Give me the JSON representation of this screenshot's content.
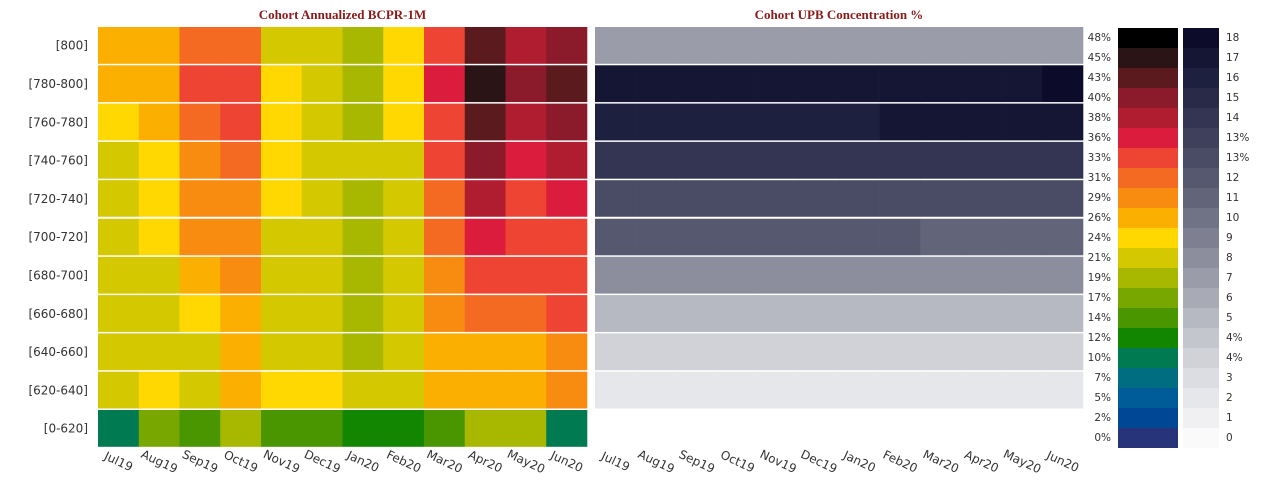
{
  "chart_data": [
    {
      "type": "heatmap",
      "title": "Cohort Annualized BCPR-1M",
      "x": [
        "Jul19",
        "Aug19",
        "Sep19",
        "Oct19",
        "Nov19",
        "Dec19",
        "Jan20",
        "Feb20",
        "Mar20",
        "Apr20",
        "May20",
        "Jun20"
      ],
      "y": [
        "[800]",
        "[780-800]",
        "[760-780]",
        "[740-760]",
        "[720-740]",
        "[700-720]",
        "[680-700]",
        "[660-680]",
        "[640-660]",
        "[620-640]",
        "[0-620]"
      ],
      "values": [
        [
          25,
          26,
          31,
          31,
          22,
          22,
          19,
          24,
          33,
          42,
          38,
          39
        ],
        [
          26,
          26,
          33,
          34,
          24,
          22,
          19,
          24,
          36,
          45,
          40,
          42
        ],
        [
          24,
          26,
          31,
          32,
          24,
          22,
          19,
          23,
          34,
          42,
          38,
          39
        ],
        [
          22,
          24,
          29,
          31,
          23,
          21,
          20,
          22,
          32,
          40,
          36,
          37
        ],
        [
          21,
          23,
          28,
          29,
          23,
          22,
          19,
          21,
          31,
          37,
          34,
          36
        ],
        [
          22,
          23,
          28,
          29,
          22,
          22,
          19,
          21,
          30,
          35,
          33,
          34
        ],
        [
          20,
          22,
          25,
          28,
          21,
          21,
          19,
          20,
          29,
          32,
          32,
          32
        ],
        [
          21,
          22,
          24,
          27,
          22,
          21,
          19,
          20,
          28,
          31,
          31,
          32
        ],
        [
          20,
          21,
          21,
          25,
          21,
          22,
          19,
          20,
          25,
          27,
          27,
          29
        ],
        [
          21,
          23,
          22,
          25,
          23,
          24,
          21,
          22,
          26,
          27,
          27,
          28
        ],
        [
          10,
          16,
          13,
          18,
          15,
          13,
          12,
          11,
          13,
          19,
          19,
          10
        ]
      ],
      "color_scale": {
        "ticks": [
          {
            "value": 48,
            "label": "48%"
          },
          {
            "value": 45,
            "label": "45%"
          },
          {
            "value": 43,
            "label": "43%"
          },
          {
            "value": 40,
            "label": "40%"
          },
          {
            "value": 38,
            "label": "38%"
          },
          {
            "value": 36,
            "label": "36%"
          },
          {
            "value": 33,
            "label": "33%"
          },
          {
            "value": 31,
            "label": "31%"
          },
          {
            "value": 29,
            "label": "29%"
          },
          {
            "value": 26,
            "label": "26%"
          },
          {
            "value": 24,
            "label": "24%"
          },
          {
            "value": 21,
            "label": "21%"
          },
          {
            "value": 19,
            "label": "19%"
          },
          {
            "value": 17,
            "label": "17%"
          },
          {
            "value": 14,
            "label": "14%"
          },
          {
            "value": 12,
            "label": "12%"
          },
          {
            "value": 10,
            "label": "10%"
          },
          {
            "value": 7,
            "label": "7%"
          },
          {
            "value": 5,
            "label": "5%"
          },
          {
            "value": 2,
            "label": "2%"
          },
          {
            "value": 0,
            "label": "0%"
          }
        ],
        "colors": [
          "#000000",
          "#2a1416",
          "#5a1a1e",
          "#8b1a2a",
          "#b01c30",
          "#dc1c3c",
          "#ee4433",
          "#f56a22",
          "#f78c10",
          "#fbaf00",
          "#fed800",
          "#d4c800",
          "#a8b800",
          "#78a800",
          "#4a9600",
          "#138600",
          "#007a50",
          "#006e80",
          "#005c96",
          "#004896",
          "#28347a"
        ]
      }
    },
    {
      "type": "heatmap",
      "title": "Cohort UPB Concentration %",
      "x": [
        "Jul19",
        "Aug19",
        "Sep19",
        "Oct19",
        "Nov19",
        "Dec19",
        "Jan20",
        "Feb20",
        "Mar20",
        "Apr20",
        "May20",
        "Jun20"
      ],
      "y": [
        "[800]",
        "[780-800]",
        "[760-780]",
        "[740-760]",
        "[720-740]",
        "[700-720]",
        "[680-700]",
        "[660-680]",
        "[640-660]",
        "[620-640]"
      ],
      "values": [
        [
          7,
          7,
          7,
          7,
          7,
          7,
          7,
          7,
          7,
          7,
          7,
          7
        ],
        [
          17,
          17,
          17,
          17,
          17,
          17,
          17,
          17,
          17,
          17,
          17,
          18
        ],
        [
          16,
          16,
          16,
          16,
          16,
          16,
          16,
          17,
          17,
          17,
          17,
          17
        ],
        [
          14,
          14,
          14,
          14,
          14,
          14,
          14,
          14,
          14,
          14,
          14,
          14
        ],
        [
          12.6,
          12.6,
          12.6,
          12.6,
          12.6,
          12.6,
          12.6,
          12.6,
          12.6,
          12.6,
          12.6,
          12.6
        ],
        [
          12,
          12,
          12,
          12,
          12,
          12,
          12,
          12,
          11,
          11,
          11,
          11
        ],
        [
          8,
          8,
          8,
          8,
          8,
          8,
          8,
          8,
          8,
          8,
          8,
          8
        ],
        [
          5,
          5,
          5,
          5,
          5,
          5,
          5,
          5,
          5,
          5,
          5,
          5
        ],
        [
          3.6,
          3.6,
          3.6,
          3.6,
          3.6,
          3.6,
          3.6,
          3.6,
          3.6,
          3.6,
          3.6,
          3.6
        ],
        [
          2,
          2,
          2,
          2,
          2,
          2,
          2,
          2,
          2,
          2,
          2,
          2
        ]
      ],
      "color_scale": {
        "ticks": [
          18,
          17,
          16,
          15,
          14,
          {
            "value": 13.4,
            "label": "13%"
          },
          {
            "value": 12.6,
            "label": "13%"
          },
          12,
          11,
          10,
          9,
          8,
          7,
          6,
          5,
          {
            "value": 4.4,
            "label": "4%"
          },
          {
            "value": 3.6,
            "label": "4%"
          },
          3,
          2,
          1,
          0
        ],
        "colors": [
          "#0c0c2a",
          "#141634",
          "#1e2040",
          "#282a48",
          "#333552",
          "#3e405c",
          "#4a4c66",
          "#565870",
          "#62647a",
          "#707286",
          "#7e8092",
          "#8c8e9e",
          "#9a9caa",
          "#a8aab6",
          "#b6b8c2",
          "#c4c6ce",
          "#d0d2d8",
          "#dcdde2",
          "#e6e7ea",
          "#f0f0f2",
          "#fafafa"
        ]
      }
    }
  ]
}
